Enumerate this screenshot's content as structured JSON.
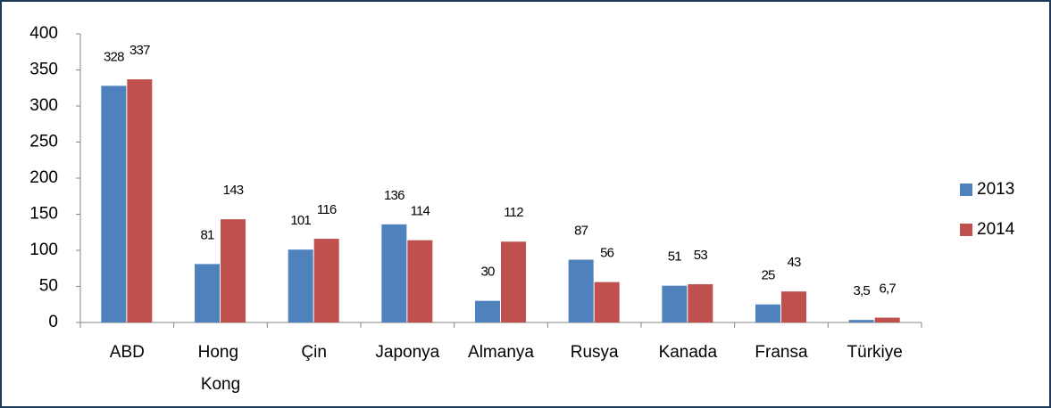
{
  "chart_data": {
    "type": "bar",
    "categories": [
      "ABD",
      "Hong Kong",
      "Çin",
      "Japonya",
      "Almanya",
      "Rusya",
      "Kanada",
      "Fransa",
      "Türkiye"
    ],
    "series": [
      {
        "name": "2013",
        "color": "#4f81bd",
        "values": [
          328,
          81,
          101,
          136,
          30,
          87,
          51,
          25,
          3.5
        ],
        "value_labels": [
          "328",
          "81",
          "101",
          "136",
          "30",
          "87",
          "51",
          "25",
          "3,5"
        ]
      },
      {
        "name": "2014",
        "color": "#c0504d",
        "values": [
          337,
          143,
          116,
          114,
          112,
          56,
          53,
          43,
          6.7
        ],
        "value_labels": [
          "337",
          "143",
          "116",
          "114",
          "112",
          "56",
          "53",
          "43",
          "6,7"
        ]
      }
    ],
    "ylim": [
      0,
      400
    ],
    "yticks": [
      0,
      50,
      100,
      150,
      200,
      250,
      300,
      350,
      400
    ],
    "grid": false,
    "legend": "right"
  }
}
